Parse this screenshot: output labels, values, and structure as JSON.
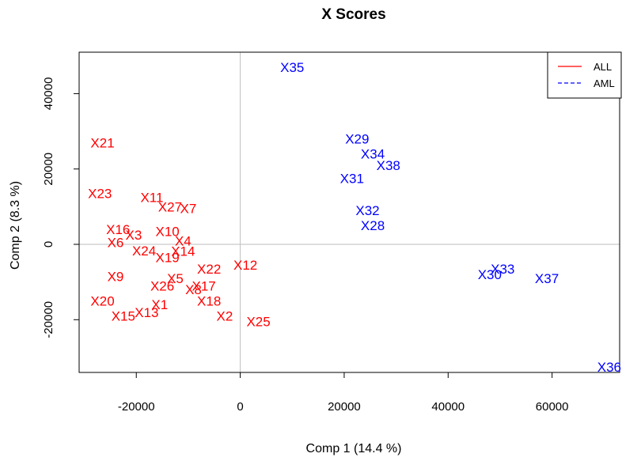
{
  "chart_data": {
    "type": "scatter",
    "title": "X Scores",
    "xlabel": "Comp 1 (14.4 %)",
    "ylabel": "Comp 2 (8.3 %)",
    "xlim": [
      -31000,
      73000
    ],
    "ylim": [
      -34000,
      51000
    ],
    "xticks": [
      -20000,
      0,
      20000,
      40000,
      60000
    ],
    "yticks": [
      -20000,
      0,
      20000,
      40000
    ],
    "x_tick_labels": [
      "-20000",
      "0",
      "20000",
      "40000",
      "60000"
    ],
    "y_tick_labels": [
      "-20000",
      "0",
      "20000",
      "40000"
    ],
    "reference_lines": {
      "x": 0,
      "y": 0,
      "color": "#bebebe"
    },
    "legend": {
      "position": "top-right",
      "entries": [
        {
          "label": "ALL",
          "color": "#ff0000",
          "line": "solid"
        },
        {
          "label": "AML",
          "color": "#0000ff",
          "line": "dashed"
        }
      ]
    },
    "series": [
      {
        "name": "ALL",
        "color": "#ff0000",
        "points": [
          {
            "label": "X1",
            "x": -15500,
            "y": -16000
          },
          {
            "label": "X2",
            "x": -3000,
            "y": -19000
          },
          {
            "label": "X3",
            "x": -20500,
            "y": 2500
          },
          {
            "label": "X4",
            "x": -11000,
            "y": 900
          },
          {
            "label": "X5",
            "x": -12500,
            "y": -9000
          },
          {
            "label": "X6",
            "x": -24000,
            "y": 500
          },
          {
            "label": "X7",
            "x": -10000,
            "y": 9500
          },
          {
            "label": "X8",
            "x": -9000,
            "y": -12000
          },
          {
            "label": "X9",
            "x": -24000,
            "y": -8500
          },
          {
            "label": "X10",
            "x": -14000,
            "y": 3500
          },
          {
            "label": "X11",
            "x": -17000,
            "y": 12500
          },
          {
            "label": "X12",
            "x": 1000,
            "y": -5500
          },
          {
            "label": "X13",
            "x": -18000,
            "y": -18000
          },
          {
            "label": "X14",
            "x": -11000,
            "y": -1800
          },
          {
            "label": "X15",
            "x": -22500,
            "y": -19000
          },
          {
            "label": "X16",
            "x": -23500,
            "y": 4000
          },
          {
            "label": "X17",
            "x": -7000,
            "y": -11000
          },
          {
            "label": "X18",
            "x": -6000,
            "y": -15000
          },
          {
            "label": "X19",
            "x": -14000,
            "y": -3500
          },
          {
            "label": "X20",
            "x": -26500,
            "y": -15000
          },
          {
            "label": "X21",
            "x": -26500,
            "y": 27000
          },
          {
            "label": "X22",
            "x": -6000,
            "y": -6500
          },
          {
            "label": "X23",
            "x": -27000,
            "y": 13500
          },
          {
            "label": "X24",
            "x": -18500,
            "y": -1700
          },
          {
            "label": "X25",
            "x": 3500,
            "y": -20500
          },
          {
            "label": "X26",
            "x": -15000,
            "y": -11000
          },
          {
            "label": "X27",
            "x": -13500,
            "y": 10000
          }
        ]
      },
      {
        "name": "AML",
        "color": "#0000ff",
        "points": [
          {
            "label": "X28",
            "x": 25500,
            "y": 5000
          },
          {
            "label": "X29",
            "x": 22500,
            "y": 28000
          },
          {
            "label": "X30",
            "x": 48000,
            "y": -8000
          },
          {
            "label": "X31",
            "x": 21500,
            "y": 17500
          },
          {
            "label": "X32",
            "x": 24500,
            "y": 9000
          },
          {
            "label": "X33",
            "x": 50500,
            "y": -6500
          },
          {
            "label": "X34",
            "x": 25500,
            "y": 24000
          },
          {
            "label": "X35",
            "x": 10000,
            "y": 47000
          },
          {
            "label": "X36",
            "x": 71000,
            "y": -32500
          },
          {
            "label": "X37",
            "x": 59000,
            "y": -9000
          },
          {
            "label": "X38",
            "x": 28500,
            "y": 21000
          }
        ]
      }
    ]
  }
}
